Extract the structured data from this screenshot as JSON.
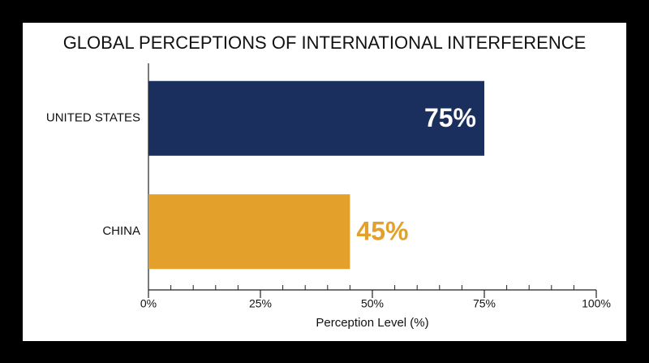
{
  "chart_data": {
    "type": "hbar",
    "title": "GLOBAL PERCEPTIONS OF INTERNATIONAL INTERFERENCE",
    "x_label": "Perception Level (%)",
    "categories": [
      "UNITED STATES",
      "CHINA"
    ],
    "values": [
      75,
      45
    ],
    "value_labels": [
      "75%",
      "45%"
    ],
    "colors": [
      "#1b2f5e",
      "#e3a02a"
    ],
    "xlim": [
      0,
      100
    ],
    "xticks": [
      {
        "value": 0,
        "label": "0%"
      },
      {
        "value": 25,
        "label": "25%"
      },
      {
        "value": 50,
        "label": "50%"
      },
      {
        "value": 75,
        "label": "75%"
      },
      {
        "value": 100,
        "label": "100%"
      }
    ],
    "xminorticks": [
      5,
      10,
      15,
      20,
      30,
      35,
      40,
      45,
      55,
      60,
      65,
      70,
      80,
      85,
      90,
      95
    ]
  }
}
